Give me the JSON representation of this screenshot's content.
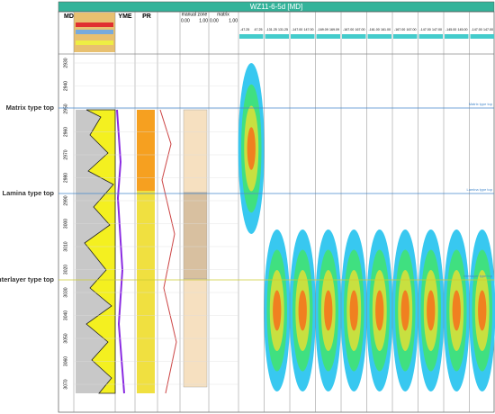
{
  "header": {
    "title": "WZ11-6-5d [MD]"
  },
  "tracks": {
    "md": "MD",
    "yme": "YME",
    "pr": "PR",
    "manual_zone": "manual zone",
    "matrix": "matrix",
    "manual_zone_scale": [
      "0.00",
      "1.00"
    ],
    "matrix_scale": [
      "0.00",
      "1.00"
    ]
  },
  "depth_ticks": [
    "2930",
    "2940",
    "2950",
    "2960",
    "2970",
    "2980",
    "2990",
    "3000",
    "3010",
    "3020",
    "3030",
    "3040",
    "3050",
    "3060",
    "3070"
  ],
  "markers": [
    "Matrix type top",
    "Lamina type top",
    "Interlayer type top"
  ],
  "fracture_scales": [
    [
      "-47.25",
      "47.25"
    ],
    [
      "-131.25",
      "131.25"
    ],
    [
      "-147.00",
      "147.00"
    ],
    [
      "-169.09",
      "169.09"
    ],
    [
      "-167.00",
      "167.00"
    ],
    [
      "-161.00",
      "161.00"
    ],
    [
      "-167.00",
      "167.00"
    ],
    [
      "-147.00",
      "147.00"
    ],
    [
      "-145.00",
      "145.00"
    ],
    [
      "-147.00",
      "147.00"
    ]
  ]
}
